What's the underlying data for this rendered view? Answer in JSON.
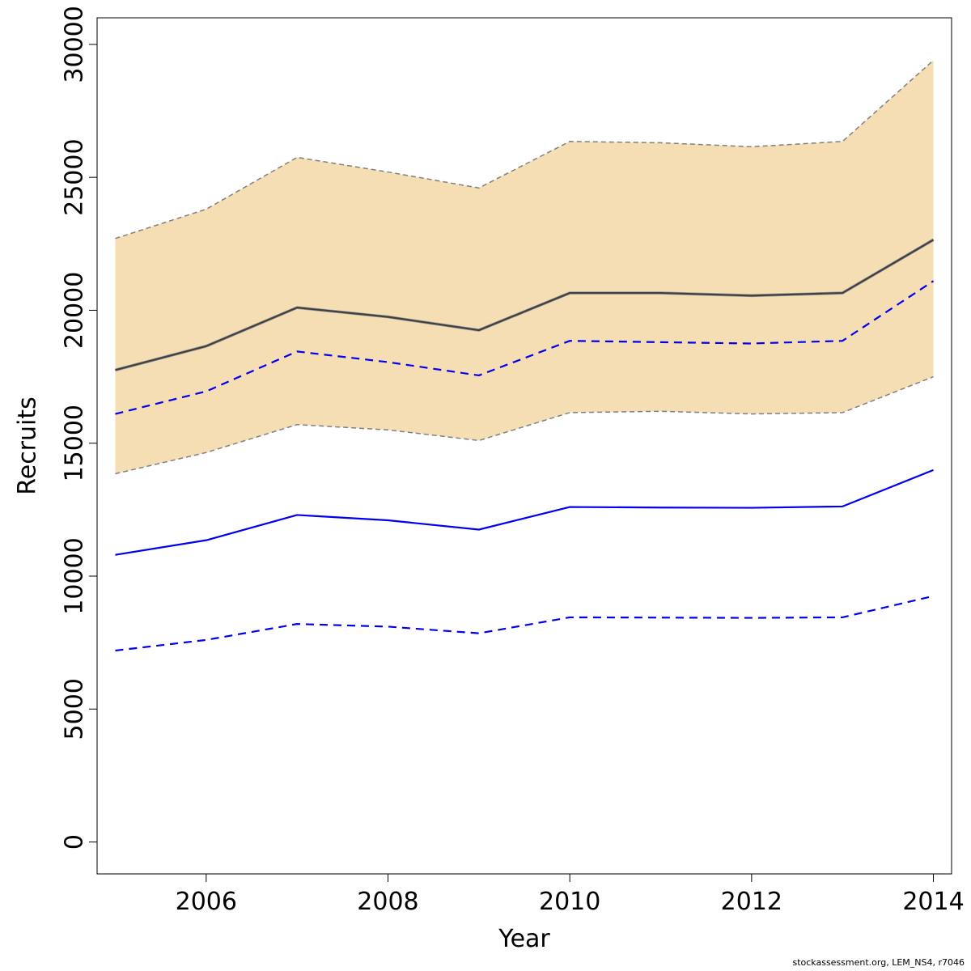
{
  "chart_data": {
    "type": "line",
    "xlabel": "Year",
    "ylabel": "Recruits",
    "xlim": [
      2004.8,
      2014.2
    ],
    "ylim": [
      -1200,
      31000
    ],
    "x_ticks": [
      2006,
      2008,
      2010,
      2012,
      2014
    ],
    "y_ticks": [
      0,
      5000,
      10000,
      15000,
      20000,
      25000,
      30000
    ],
    "grid": false,
    "legend": "none",
    "x": [
      2005,
      2006,
      2007,
      2008,
      2009,
      2010,
      2011,
      2012,
      2013,
      2014
    ],
    "series": [
      {
        "role": "band-upper",
        "color": "#808080",
        "values": [
          22700,
          23800,
          25750,
          25200,
          24600,
          26350,
          26300,
          26150,
          26350,
          29400
        ]
      },
      {
        "role": "band-lower",
        "color": "#808080",
        "values": [
          13850,
          14650,
          15700,
          15500,
          15100,
          16150,
          16200,
          16100,
          16150,
          17500
        ]
      },
      {
        "role": "black-solid",
        "color": "#404040",
        "values": [
          17750,
          18650,
          20100,
          19750,
          19250,
          20650,
          20650,
          20550,
          20650,
          22650
        ]
      },
      {
        "role": "blue-dashed-upper",
        "color": "#0000ee",
        "values": [
          16100,
          16950,
          18450,
          18050,
          17550,
          18850,
          18800,
          18750,
          18850,
          21100
        ]
      },
      {
        "role": "blue-solid",
        "color": "#0000ee",
        "values": [
          10800,
          11350,
          12300,
          12100,
          11750,
          12600,
          12580,
          12570,
          12620,
          13990
        ]
      },
      {
        "role": "blue-dashed-lower",
        "color": "#0000ee",
        "values": [
          7200,
          7600,
          8200,
          8100,
          7850,
          8450,
          8440,
          8430,
          8450,
          9250
        ]
      }
    ],
    "band_fill": "#f5deb3"
  },
  "footnote": "stockassessment.org, LEM_NS4, r7046"
}
